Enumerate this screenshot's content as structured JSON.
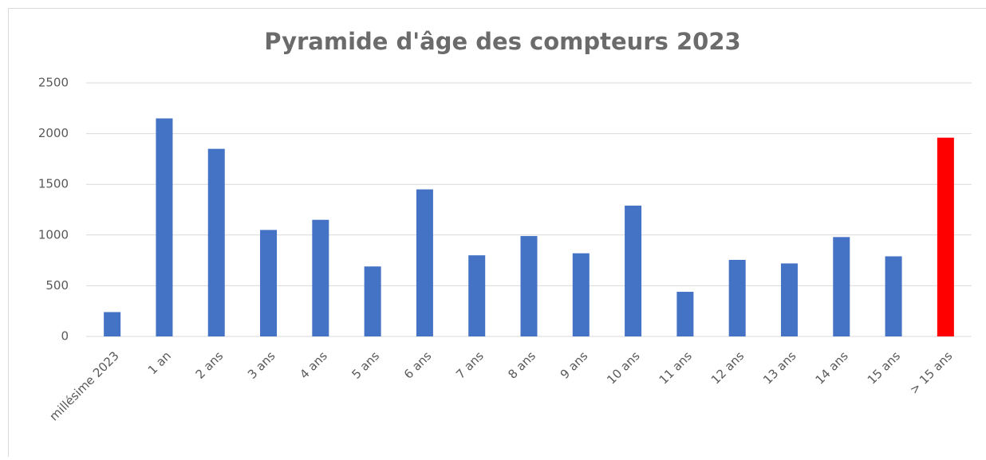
{
  "chart_data": {
    "type": "bar",
    "title": "Pyramide d'âge des compteurs 2023",
    "categories": [
      "millésime 2023",
      "1 an",
      "2 ans",
      "3 ans",
      "4 ans",
      "5 ans",
      "6 ans",
      "7 ans",
      "8 ans",
      "9 ans",
      "10 ans",
      "11 ans",
      "12 ans",
      "13 ans",
      "14 ans",
      "15 ans",
      "> 15 ans"
    ],
    "values": [
      240,
      2150,
      1850,
      1050,
      1150,
      690,
      1450,
      800,
      990,
      820,
      1290,
      440,
      755,
      720,
      980,
      790,
      1960
    ],
    "colors": [
      "#4472c4",
      "#4472c4",
      "#4472c4",
      "#4472c4",
      "#4472c4",
      "#4472c4",
      "#4472c4",
      "#4472c4",
      "#4472c4",
      "#4472c4",
      "#4472c4",
      "#4472c4",
      "#4472c4",
      "#4472c4",
      "#4472c4",
      "#4472c4",
      "#ff0000"
    ],
    "ylim": [
      0,
      2500
    ],
    "yticks": [
      0,
      500,
      1000,
      1500,
      2000,
      2500
    ],
    "grid": true
  }
}
